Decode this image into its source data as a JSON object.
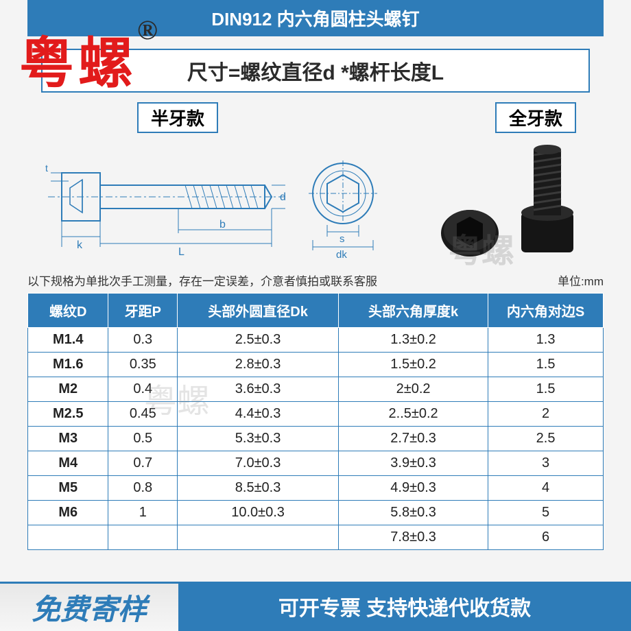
{
  "title": "DIN912 内六角圆柱头螺钉",
  "formula": "尺寸=螺纹直径d *螺杆长度L",
  "tag_left": "半牙款",
  "tag_right": "全牙款",
  "note_left": "以下规格为单批次手工测量，存在一定误差，介意者慎拍或联系客服",
  "note_unit": "单位:mm",
  "brand": "粤螺",
  "watermark": "粤螺",
  "table": {
    "columns": [
      "螺纹D",
      "牙距P",
      "头部外圆直径Dk",
      "头部六角厚度k",
      "内六角对边S"
    ],
    "rows": [
      [
        "M1.4",
        "0.3",
        "2.5±0.3",
        "1.3±0.2",
        "1.3"
      ],
      [
        "M1.6",
        "0.35",
        "2.8±0.3",
        "1.5±0.2",
        "1.5"
      ],
      [
        "M2",
        "0.4",
        "3.6±0.3",
        "2±0.2",
        "1.5"
      ],
      [
        "M2.5",
        "0.45",
        "4.4±0.3",
        "2..5±0.2",
        "2"
      ],
      [
        "M3",
        "0.5",
        "5.3±0.3",
        "2.7±0.3",
        "2.5"
      ],
      [
        "M4",
        "0.7",
        "7.0±0.3",
        "3.9±0.3",
        "3"
      ],
      [
        "M5",
        "0.8",
        "8.5±0.3",
        "4.9±0.3",
        "4"
      ],
      [
        "M6",
        "1",
        "10.0±0.3",
        "5.8±0.3",
        "5"
      ],
      [
        "",
        "",
        "",
        "7.8±0.3",
        "6"
      ]
    ],
    "col_widths": [
      "14%",
      "12%",
      "28%",
      "26%",
      "20%"
    ]
  },
  "col_k": "k",
  "col_L": "L",
  "col_b": "b",
  "col_d": "d",
  "col_s": "s",
  "col_dk": "dk",
  "col_t": "t",
  "bottom_left": "免费寄样",
  "bottom_right": "可开专票 支持快递代收货款",
  "colors": {
    "primary": "#2e7cb8",
    "brand_red": "#e21b1b",
    "screw_black": "#1a1a1a"
  }
}
